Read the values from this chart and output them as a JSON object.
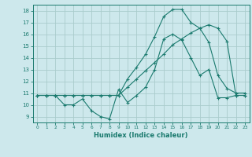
{
  "xlabel": "Humidex (Indice chaleur)",
  "bg_color": "#cde8ec",
  "grid_color": "#aacccc",
  "line_color": "#1a7a6e",
  "xlim": [
    -0.5,
    23.5
  ],
  "ylim": [
    8.5,
    18.5
  ],
  "xticks": [
    0,
    1,
    2,
    3,
    4,
    5,
    6,
    7,
    8,
    9,
    10,
    11,
    12,
    13,
    14,
    15,
    16,
    17,
    18,
    19,
    20,
    21,
    22,
    23
  ],
  "yticks": [
    9,
    10,
    11,
    12,
    13,
    14,
    15,
    16,
    17,
    18
  ],
  "line1_x": [
    0,
    1,
    2,
    3,
    4,
    5,
    6,
    7,
    8,
    9,
    10,
    11,
    12,
    13,
    14,
    15,
    16,
    17,
    18,
    19,
    20,
    21,
    22,
    23
  ],
  "line1_y": [
    10.8,
    10.8,
    10.8,
    10.8,
    10.8,
    10.8,
    10.8,
    10.8,
    10.8,
    10.8,
    11.5,
    12.2,
    12.9,
    13.6,
    14.3,
    15.1,
    15.6,
    16.1,
    16.5,
    16.8,
    16.5,
    15.4,
    10.8,
    10.8
  ],
  "line2_x": [
    0,
    1,
    2,
    3,
    4,
    5,
    6,
    7,
    8,
    9,
    10,
    11,
    12,
    13,
    14,
    15,
    16,
    17,
    18,
    19,
    20,
    21,
    22,
    23
  ],
  "line2_y": [
    10.8,
    10.8,
    10.8,
    10.0,
    10.0,
    10.5,
    9.5,
    9.0,
    8.8,
    11.3,
    10.2,
    10.8,
    11.5,
    13.0,
    15.6,
    16.0,
    15.5,
    14.0,
    12.5,
    13.0,
    10.6,
    10.6,
    10.8,
    10.8
  ],
  "line3_x": [
    0,
    1,
    2,
    3,
    4,
    5,
    6,
    7,
    8,
    9,
    10,
    11,
    12,
    13,
    14,
    15,
    16,
    17,
    18,
    19,
    20,
    21,
    22,
    23
  ],
  "line3_y": [
    10.8,
    10.8,
    10.8,
    10.8,
    10.8,
    10.8,
    10.8,
    10.8,
    10.8,
    10.8,
    12.2,
    13.2,
    14.3,
    15.8,
    17.5,
    18.1,
    18.1,
    17.0,
    16.5,
    15.3,
    12.5,
    11.4,
    11.0,
    11.0
  ]
}
